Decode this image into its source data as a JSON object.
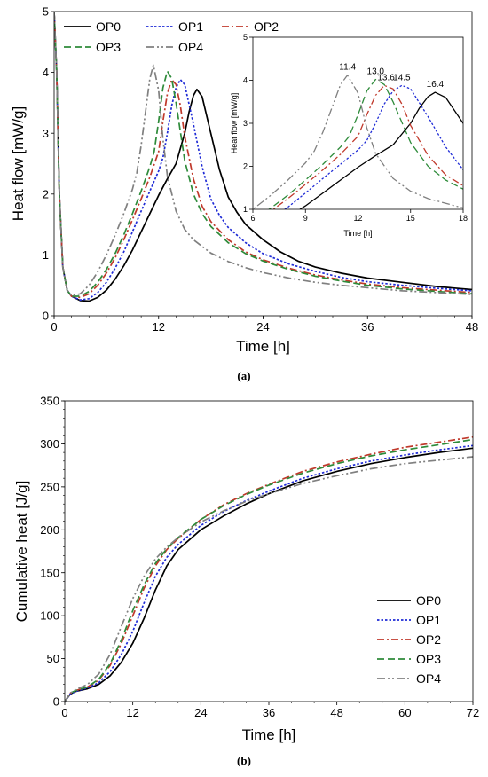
{
  "figure": {
    "caption_a": "(a)",
    "caption_b": "(b)"
  },
  "chart_data": [
    {
      "id": "heat_flow",
      "type": "line",
      "xlabel": "Time [h]",
      "ylabel": "Heat flow [mW/g]",
      "xlim": [
        0,
        48
      ],
      "ylim": [
        0,
        5
      ],
      "xticks": [
        0,
        12,
        24,
        36,
        48
      ],
      "yticks": [
        0,
        1,
        2,
        3,
        4,
        5
      ],
      "grid": false,
      "legend": "top-left, three columns",
      "series": [
        {
          "name": "OP0",
          "color": "#000000",
          "dash": "solid",
          "x": [
            0,
            0.3,
            0.6,
            1,
            1.5,
            2,
            3,
            4,
            5,
            6,
            7,
            8,
            9,
            10,
            11,
            12,
            13,
            14,
            15,
            15.5,
            16,
            16.4,
            17,
            18,
            19,
            20,
            21,
            22,
            24,
            26,
            28,
            30,
            33,
            36,
            40,
            44,
            48
          ],
          "y": [
            5,
            4.0,
            2.0,
            0.8,
            0.42,
            0.32,
            0.25,
            0.24,
            0.3,
            0.42,
            0.6,
            0.82,
            1.08,
            1.38,
            1.68,
            1.98,
            2.25,
            2.5,
            3.0,
            3.35,
            3.62,
            3.72,
            3.6,
            3.0,
            2.4,
            1.95,
            1.7,
            1.5,
            1.25,
            1.05,
            0.9,
            0.8,
            0.7,
            0.62,
            0.55,
            0.48,
            0.43
          ]
        },
        {
          "name": "OP1",
          "color": "#1f2bd6",
          "dash": "dot",
          "x": [
            0,
            0.3,
            0.6,
            1,
            1.5,
            2,
            3,
            4,
            5,
            6,
            7,
            8,
            9,
            10,
            11,
            12,
            12.5,
            13,
            13.5,
            14,
            14.5,
            15,
            16,
            17,
            18,
            19,
            20,
            22,
            24,
            27,
            30,
            33,
            36,
            40,
            44,
            48
          ],
          "y": [
            5,
            4.0,
            2.0,
            0.8,
            0.42,
            0.32,
            0.26,
            0.28,
            0.38,
            0.55,
            0.78,
            1.05,
            1.38,
            1.72,
            2.05,
            2.38,
            2.6,
            3.0,
            3.45,
            3.75,
            3.88,
            3.8,
            3.15,
            2.45,
            1.92,
            1.65,
            1.45,
            1.2,
            1.02,
            0.85,
            0.73,
            0.63,
            0.56,
            0.5,
            0.45,
            0.41
          ]
        },
        {
          "name": "OP2",
          "color": "#c0392b",
          "dash": "dashdot",
          "x": [
            0,
            0.3,
            0.6,
            1,
            1.5,
            2,
            3,
            4,
            5,
            6,
            7,
            8,
            9,
            10,
            11,
            12,
            12.5,
            13,
            13.5,
            14,
            14.5,
            15,
            16,
            17,
            18,
            20,
            22,
            24,
            27,
            30,
            33,
            36,
            40,
            44,
            48
          ],
          "y": [
            5,
            4.0,
            2.0,
            0.8,
            0.42,
            0.32,
            0.3,
            0.36,
            0.5,
            0.7,
            0.95,
            1.25,
            1.58,
            1.92,
            2.28,
            2.7,
            3.2,
            3.65,
            3.88,
            3.8,
            3.45,
            2.95,
            2.25,
            1.8,
            1.55,
            1.25,
            1.05,
            0.92,
            0.78,
            0.67,
            0.59,
            0.52,
            0.46,
            0.42,
            0.38
          ]
        },
        {
          "name": "OP3",
          "color": "#2e8b3a",
          "dash": "dash",
          "x": [
            0,
            0.3,
            0.6,
            1,
            1.5,
            2,
            3,
            4,
            5,
            6,
            7,
            8,
            9,
            10,
            11,
            11.5,
            12,
            12.5,
            13,
            13.5,
            14,
            15,
            16,
            17,
            18,
            20,
            22,
            24,
            27,
            30,
            33,
            36,
            40,
            44,
            48
          ],
          "y": [
            5,
            4.0,
            2.0,
            0.8,
            0.42,
            0.32,
            0.32,
            0.4,
            0.55,
            0.76,
            1.02,
            1.33,
            1.68,
            2.05,
            2.45,
            2.7,
            3.2,
            3.75,
            4.02,
            3.9,
            3.5,
            2.55,
            2.0,
            1.68,
            1.47,
            1.2,
            1.02,
            0.9,
            0.76,
            0.65,
            0.57,
            0.5,
            0.44,
            0.4,
            0.36
          ]
        },
        {
          "name": "OP4",
          "color": "#808080",
          "dash": "dashdotdot",
          "x": [
            0,
            0.3,
            0.6,
            1,
            1.5,
            2,
            3,
            4,
            5,
            6,
            7,
            8,
            9,
            9.5,
            10,
            10.5,
            11,
            11.4,
            12,
            12.5,
            13,
            14,
            15,
            16,
            18,
            20,
            22,
            24,
            27,
            30,
            33,
            36,
            40,
            44,
            48
          ],
          "y": [
            5,
            4.0,
            2.0,
            0.8,
            0.42,
            0.33,
            0.36,
            0.5,
            0.72,
            1.0,
            1.32,
            1.68,
            2.08,
            2.35,
            2.8,
            3.35,
            3.9,
            4.12,
            3.7,
            2.9,
            2.3,
            1.72,
            1.42,
            1.25,
            1.03,
            0.89,
            0.79,
            0.71,
            0.62,
            0.55,
            0.5,
            0.46,
            0.41,
            0.38,
            0.35
          ]
        }
      ]
    },
    {
      "id": "heat_flow_inset",
      "type": "line",
      "xlabel": "Time [h]",
      "ylabel": "Heat flow [mW/g]",
      "xlim": [
        6,
        18
      ],
      "ylim": [
        1,
        5
      ],
      "xticks": [
        6,
        9,
        12,
        15,
        18
      ],
      "yticks": [
        1,
        2,
        3,
        4,
        5
      ],
      "annotations": [
        {
          "text": "11.4",
          "x": 11.4,
          "y": 4.12
        },
        {
          "text": "13.0",
          "x": 13.0,
          "y": 4.02
        },
        {
          "text": "13.6",
          "x": 13.6,
          "y": 3.88
        },
        {
          "text": "14.5",
          "x": 14.5,
          "y": 3.88
        },
        {
          "text": "16.4",
          "x": 16.4,
          "y": 3.72
        }
      ]
    },
    {
      "id": "cumulative_heat",
      "type": "line",
      "xlabel": "Time [h]",
      "ylabel": "Cumulative heat [J/g]",
      "xlim": [
        0,
        72
      ],
      "ylim": [
        0,
        350
      ],
      "xticks": [
        0,
        12,
        24,
        36,
        48,
        60,
        72
      ],
      "yticks": [
        0,
        50,
        100,
        150,
        200,
        250,
        300,
        350
      ],
      "grid": false,
      "legend": "bottom-right",
      "series": [
        {
          "name": "OP0",
          "color": "#000000",
          "dash": "solid",
          "x": [
            0,
            1,
            2,
            4,
            6,
            8,
            10,
            12,
            14,
            16,
            18,
            20,
            24,
            28,
            32,
            36,
            42,
            48,
            54,
            60,
            66,
            72
          ],
          "y": [
            0,
            9,
            12,
            15,
            20,
            30,
            46,
            68,
            97,
            130,
            158,
            177,
            200,
            216,
            230,
            242,
            257,
            268,
            277,
            284,
            290,
            295
          ]
        },
        {
          "name": "OP1",
          "color": "#1f2bd6",
          "dash": "dot",
          "x": [
            0,
            1,
            2,
            4,
            6,
            8,
            10,
            12,
            14,
            16,
            18,
            20,
            24,
            28,
            32,
            36,
            42,
            48,
            54,
            60,
            66,
            72
          ],
          "y": [
            0,
            9,
            12,
            16,
            22,
            35,
            55,
            82,
            115,
            146,
            168,
            183,
            205,
            221,
            234,
            245,
            260,
            271,
            280,
            287,
            293,
            298
          ]
        },
        {
          "name": "OP2",
          "color": "#c0392b",
          "dash": "dashdot",
          "x": [
            0,
            1,
            2,
            4,
            6,
            8,
            10,
            12,
            14,
            16,
            18,
            20,
            24,
            28,
            32,
            36,
            42,
            48,
            54,
            60,
            66,
            72
          ],
          "y": [
            0,
            10,
            13,
            17,
            25,
            42,
            68,
            100,
            132,
            158,
            177,
            190,
            212,
            229,
            242,
            253,
            268,
            279,
            288,
            296,
            302,
            308
          ]
        },
        {
          "name": "OP3",
          "color": "#2e8b3a",
          "dash": "dash",
          "x": [
            0,
            1,
            2,
            4,
            6,
            8,
            10,
            12,
            14,
            16,
            18,
            20,
            24,
            28,
            32,
            36,
            42,
            48,
            54,
            60,
            66,
            72
          ],
          "y": [
            0,
            10,
            13,
            17,
            26,
            44,
            72,
            106,
            136,
            161,
            178,
            191,
            212,
            228,
            241,
            252,
            266,
            277,
            286,
            293,
            299,
            305
          ]
        },
        {
          "name": "OP4",
          "color": "#808080",
          "dash": "dashdotdot",
          "x": [
            0,
            1,
            2,
            4,
            6,
            8,
            10,
            12,
            14,
            16,
            18,
            20,
            24,
            28,
            32,
            36,
            42,
            48,
            54,
            60,
            66,
            72
          ],
          "y": [
            0,
            10,
            14,
            20,
            32,
            55,
            88,
            120,
            146,
            166,
            180,
            191,
            209,
            222,
            233,
            242,
            254,
            263,
            271,
            277,
            281,
            285
          ]
        }
      ]
    }
  ]
}
